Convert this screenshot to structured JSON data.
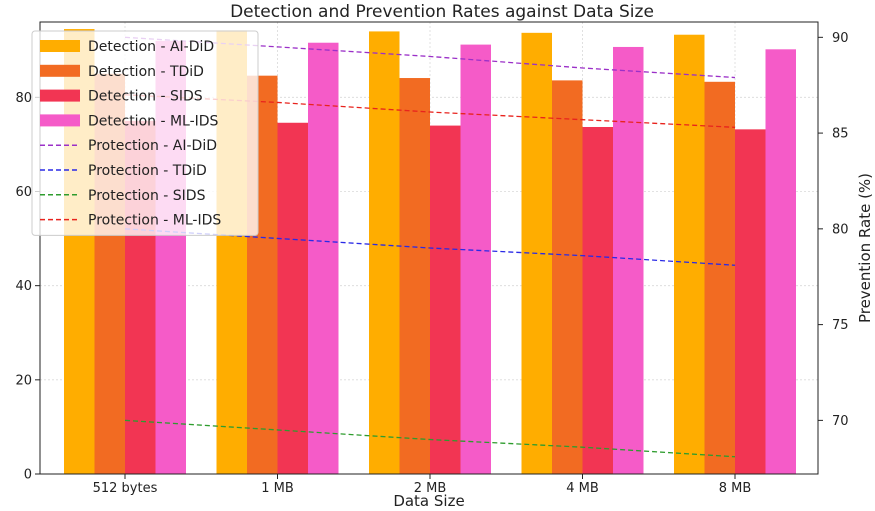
{
  "chart_data": {
    "type": "bar",
    "title": "Detection and Prevention Rates against Data Size",
    "xlabel": "Data Size",
    "ylabel": "",
    "y2label": "Prevention Rate (%)",
    "categories": [
      "512 bytes",
      "1 MB",
      "2 MB",
      "4 MB",
      "8 MB"
    ],
    "ylim": [
      0,
      96
    ],
    "y2lim": [
      67.2,
      90.8
    ],
    "yticks": [
      0,
      20,
      40,
      60,
      80
    ],
    "y2ticks": [
      70,
      75,
      80,
      85,
      90
    ],
    "grid": true,
    "legend_position": "top-left",
    "series": [
      {
        "name": "Detection - AI-DiD",
        "kind": "bar",
        "color": "#ffad00",
        "values": [
          94.5,
          94.2,
          94.0,
          93.7,
          93.3
        ]
      },
      {
        "name": "Detection - TDiD",
        "kind": "bar",
        "color": "#f26b22",
        "values": [
          85.0,
          84.6,
          84.1,
          83.6,
          83.3
        ]
      },
      {
        "name": "Detection - SIDS",
        "kind": "bar",
        "color": "#f23553",
        "values": [
          75.0,
          74.6,
          74.0,
          73.7,
          73.2
        ]
      },
      {
        "name": "Detection - ML-IDS",
        "kind": "bar",
        "color": "#f55bc8",
        "values": [
          92.0,
          91.6,
          91.2,
          90.7,
          90.2
        ]
      },
      {
        "name": "Protection - AI-DiD",
        "kind": "line",
        "color": "#9b30c8",
        "values": [
          90.0,
          89.5,
          89.0,
          88.4,
          87.9
        ]
      },
      {
        "name": "Protection - TDiD",
        "kind": "line",
        "color": "#2a2ae6",
        "values": [
          80.0,
          79.5,
          79.0,
          78.6,
          78.1
        ]
      },
      {
        "name": "Protection - SIDS",
        "kind": "line",
        "color": "#2e9c2e",
        "values": [
          70.0,
          69.5,
          69.0,
          68.6,
          68.1
        ]
      },
      {
        "name": "Protection - ML-IDS",
        "kind": "line",
        "color": "#e8231d",
        "values": [
          87.0,
          86.6,
          86.1,
          85.7,
          85.3
        ]
      }
    ]
  }
}
